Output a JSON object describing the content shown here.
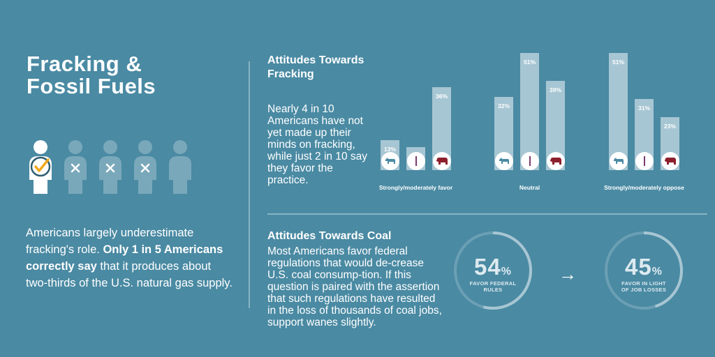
{
  "title": [
    "Fracking &",
    "Fossil Fuels"
  ],
  "left_note": {
    "part1": "Americans largely underestimate fracking's role. ",
    "bold": "Only 1 in 5 Americans correctly say",
    "part2": " that it produces about two-thirds of the U.S. natural gas supply."
  },
  "people_icons": {
    "total": 5,
    "correct_index": 0,
    "icons": [
      "person-check-icon",
      "person-x-icon",
      "person-x-icon",
      "person-x-icon",
      "person-icon"
    ]
  },
  "fracking": {
    "title": "Attitudes Towards Fracking",
    "body": "Nearly 4 in 10 Americans have not yet made up their minds on fracking, while just 2 in 10 say they favor the practice."
  },
  "coal": {
    "title": "Attitudes Towards Coal",
    "body": "Most Americans favor federal regulations that would de-crease U.S. coal consump-tion. If this question is paired with the assertion that such regulations have resulted in the loss of thousands of coal jobs, support wanes slightly."
  },
  "chart_data": [
    {
      "type": "bar",
      "categories": [
        "Strongly/moderately favor",
        "Neutral",
        "Strongly/moderately oppose"
      ],
      "series": [
        {
          "values": [
            13,
            32,
            51
          ]
        },
        {
          "values": [
            10,
            51,
            31
          ]
        },
        {
          "values": [
            36,
            39,
            23
          ]
        }
      ],
      "series_icons": [
        "donkey-icon",
        "independent-bar-icon",
        "elephant-icon"
      ],
      "labels_format": "%",
      "ylim": [
        0,
        51
      ]
    },
    {
      "type": "pie",
      "values": [
        54
      ],
      "display": "54",
      "unit": "%",
      "caption": [
        "FAVOR FEDERAL",
        "RULES"
      ]
    },
    {
      "type": "pie",
      "values": [
        45
      ],
      "display": "45",
      "unit": "%",
      "caption": [
        "FAVOR IN LIGHT",
        "OF JOB LOSSES"
      ]
    }
  ],
  "arrow": "→",
  "colors": {
    "background": "#4a8aa3",
    "bar": "#a7c6d3",
    "republican": "#8c1f2c",
    "democrat": "#4a8aa3",
    "independent": "#7b3a6e",
    "donut_track": "#6b9fb4",
    "donut_fill": "#a7c6d3"
  }
}
